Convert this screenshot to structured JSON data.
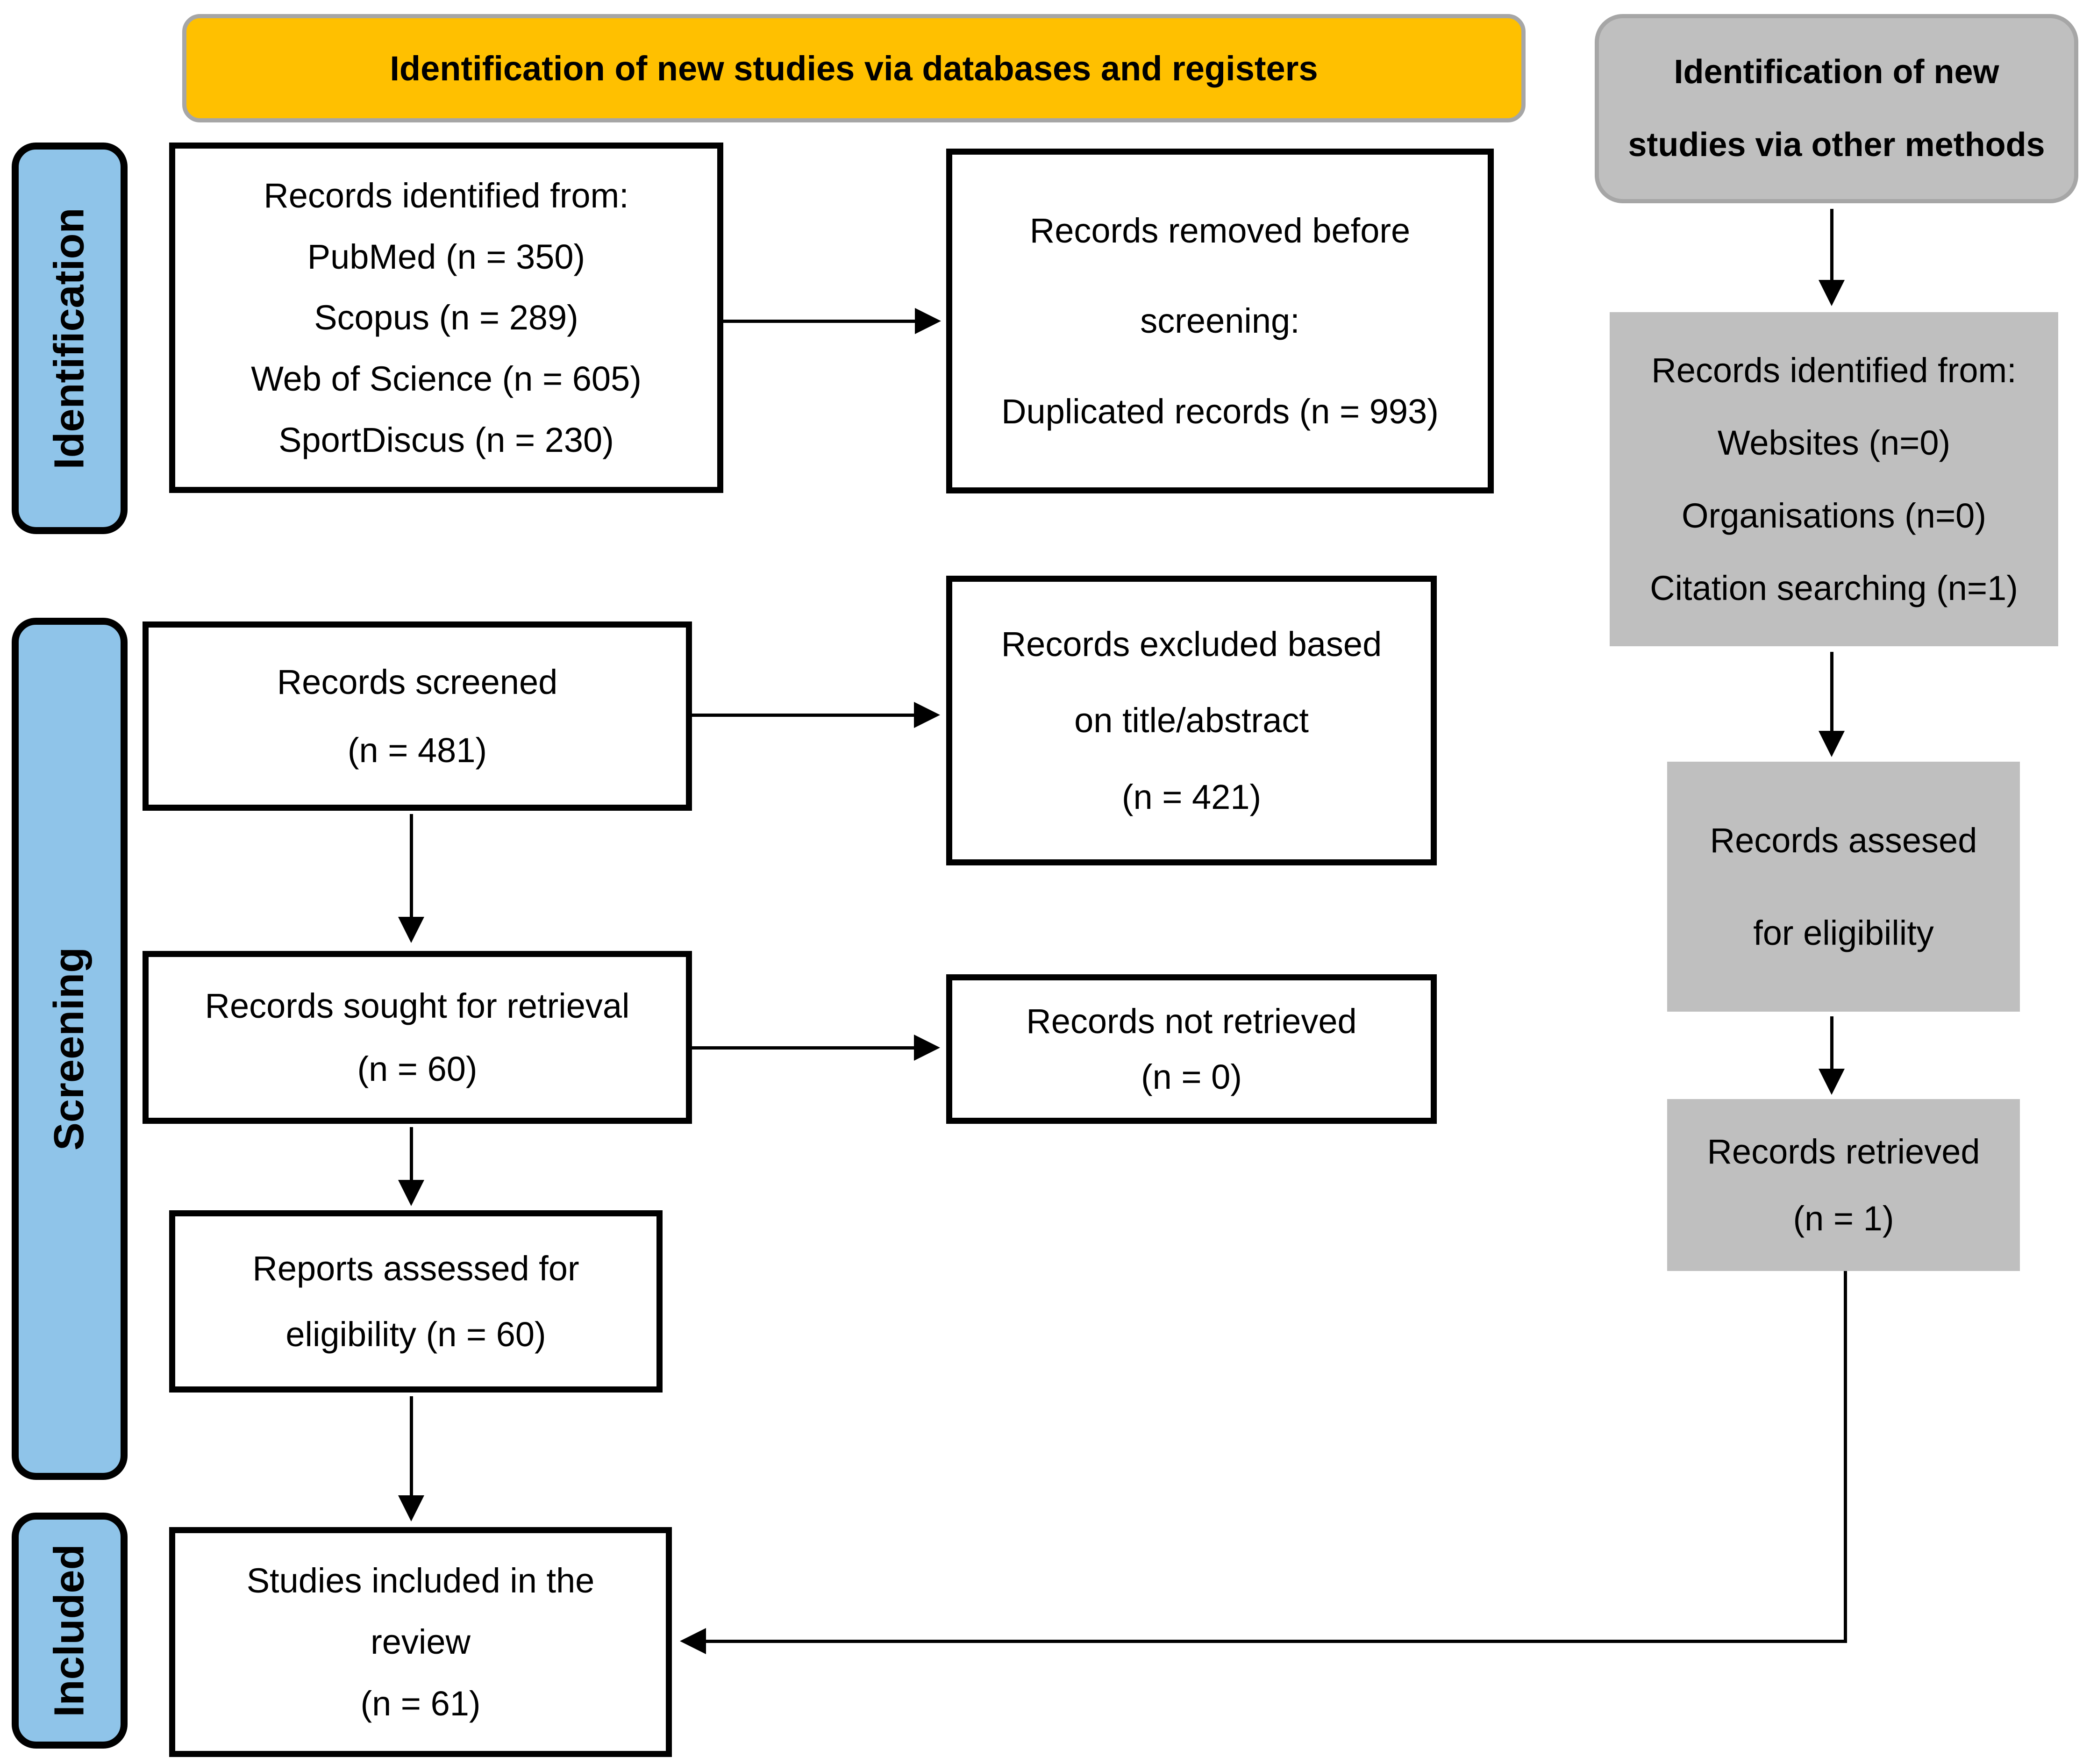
{
  "headers": {
    "databases_registers": "Identification of new studies via databases and registers",
    "other_methods": {
      "lines": [
        "Identification of new",
        "studies via other methods"
      ]
    }
  },
  "sidebar": {
    "identification": "Identification",
    "screening": "Screening",
    "included": "Included"
  },
  "boxes": {
    "records_identified": {
      "lines": [
        "Records identified from:",
        "PubMed (n = 350)",
        "Scopus (n = 289)",
        "Web of Science (n = 605)",
        "SportDiscus (n = 230)"
      ]
    },
    "records_removed": {
      "lines": [
        "Records removed before",
        "screening:",
        "Duplicated records (n = 993)"
      ]
    },
    "records_screened": {
      "lines": [
        "Records screened",
        "(n = 481)"
      ]
    },
    "records_excluded": {
      "lines": [
        "Records excluded based",
        "on title/abstract",
        "(n = 421)"
      ]
    },
    "records_sought": {
      "lines": [
        "Records sought for retrieval",
        "(n = 60)"
      ]
    },
    "records_not_retrieved": {
      "lines": [
        "Records not retrieved",
        "(n = 0)"
      ]
    },
    "reports_assessed": {
      "lines": [
        "Reports assessed for",
        "eligibility (n = 60)"
      ]
    },
    "studies_included": {
      "lines": [
        "Studies included in the",
        "review",
        "(n = 61)"
      ]
    },
    "other_records_identified": {
      "lines": [
        "Records identified from:",
        "Websites (n=0)",
        "Organisations (n=0)",
        "Citation searching (n=1)"
      ]
    },
    "other_records_assessed": {
      "lines": [
        "Records assesed",
        "for eligibility"
      ]
    },
    "other_records_retrieved": {
      "lines": [
        "Records retrieved",
        "(n = 1)"
      ]
    }
  },
  "colors": {
    "banner_fill": "#FFC000",
    "banner_border": "#A6A6A6",
    "gray_fill": "#BFBFBF",
    "sidebar_blue": "#8FC4E9",
    "box_border": "#000000",
    "text": "#000000"
  }
}
